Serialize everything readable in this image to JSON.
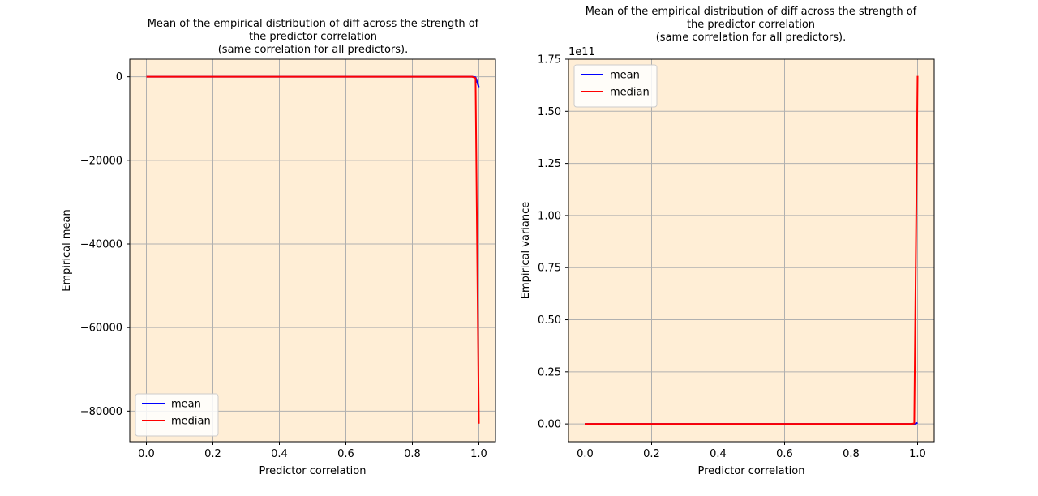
{
  "chart_data": [
    {
      "type": "line",
      "title": "Mean of the empirical distribution of diff across the strength of the predictor correlation (same correlation for all predictors).",
      "title_lines": [
        "Mean of the empirical distribution of diff across the strength of",
        "the predictor correlation",
        "(same correlation for all predictors)."
      ],
      "xlabel": "Predictor correlation",
      "ylabel": "Empirical mean",
      "xlim": [
        -0.05,
        1.05
      ],
      "ylim": [
        -87300,
        4200
      ],
      "xticks": [
        0.0,
        0.2,
        0.4,
        0.6,
        0.8,
        1.0
      ],
      "xtick_labels": [
        "0.0",
        "0.2",
        "0.4",
        "0.6",
        "0.8",
        "1.0"
      ],
      "yticks": [
        0,
        -20000,
        -40000,
        -60000,
        -80000
      ],
      "ytick_labels": [
        "0",
        "−20000",
        "−40000",
        "−60000",
        "−80000"
      ],
      "offset_label": "",
      "grid": true,
      "background": "#ffeed6",
      "legend": {
        "position": "lower-left"
      },
      "series": [
        {
          "name": "mean",
          "color": "#0000ff",
          "x": [
            0.0,
            0.98,
            0.99,
            1.0
          ],
          "y": [
            0,
            0,
            -100,
            -2500
          ]
        },
        {
          "name": "median",
          "color": "#ff0000",
          "x": [
            0.0,
            0.98,
            0.99,
            1.0
          ],
          "y": [
            0,
            0,
            -300,
            -83000
          ]
        }
      ]
    },
    {
      "type": "line",
      "title": "Mean of the empirical distribution of diff across the strength of the predictor correlation (same correlation for all predictors).",
      "title_lines": [
        "Mean of the empirical distribution of diff across the strength of",
        "the predictor correlation",
        "(same correlation for all predictors)."
      ],
      "xlabel": "Predictor correlation",
      "ylabel": "Empirical variance",
      "xlim": [
        -0.05,
        1.05
      ],
      "ylim": [
        -0.085,
        1.75
      ],
      "xticks": [
        0.0,
        0.2,
        0.4,
        0.6,
        0.8,
        1.0
      ],
      "xtick_labels": [
        "0.0",
        "0.2",
        "0.4",
        "0.6",
        "0.8",
        "1.0"
      ],
      "yticks": [
        0.0,
        0.25,
        0.5,
        0.75,
        1.0,
        1.25,
        1.5,
        1.75
      ],
      "ytick_labels": [
        "0.00",
        "0.25",
        "0.50",
        "0.75",
        "1.00",
        "1.25",
        "1.50",
        "1.75"
      ],
      "offset_label": "1e11",
      "grid": true,
      "background": "#ffeed6",
      "legend": {
        "position": "upper-left"
      },
      "series": [
        {
          "name": "mean",
          "color": "#0000ff",
          "x": [
            0.0,
            0.98,
            0.99,
            1.0
          ],
          "y": [
            0,
            0,
            0.0,
            0.005
          ]
        },
        {
          "name": "median",
          "color": "#ff0000",
          "x": [
            0.0,
            0.98,
            0.99,
            1.0
          ],
          "y": [
            0,
            0,
            0.002,
            1.67
          ]
        }
      ]
    }
  ]
}
